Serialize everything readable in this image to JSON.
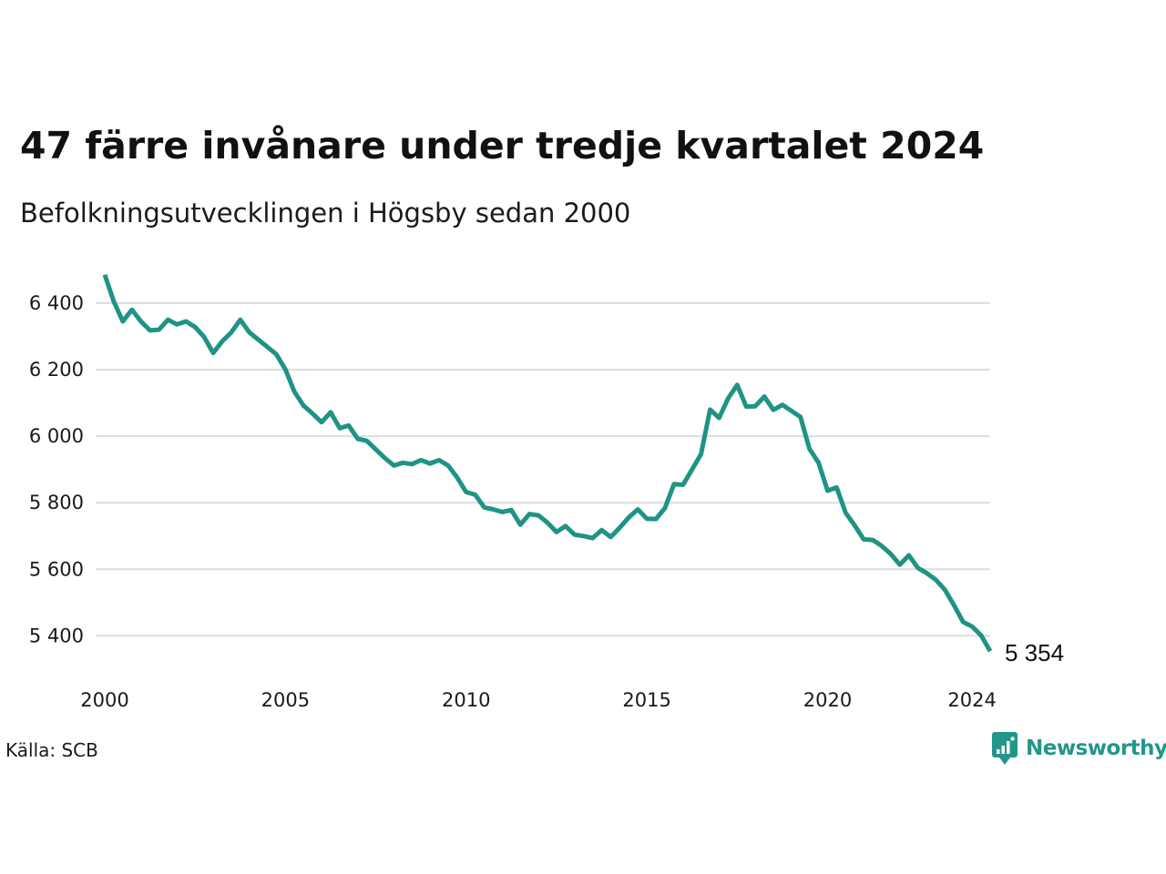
{
  "chart_data": {
    "type": "line",
    "title": "47 färre invånare under tredje kvartalet 2024",
    "subtitle": "Befolkningsutvecklingen i Högsby sedan 2000",
    "source": "Källa: SCB",
    "brand": "Newsworthy",
    "line_color": "#1f9384",
    "grid": true,
    "xlim": [
      2000,
      2024.5
    ],
    "ylim": [
      5330,
      6490
    ],
    "x_ticks": [
      {
        "value": 2000,
        "label": "2000"
      },
      {
        "value": 2005,
        "label": "2005"
      },
      {
        "value": 2010,
        "label": "2010"
      },
      {
        "value": 2015,
        "label": "2015"
      },
      {
        "value": 2020,
        "label": "2020"
      },
      {
        "value": 2024,
        "label": "2024"
      }
    ],
    "y_ticks": [
      {
        "value": 5400,
        "label": "5 400"
      },
      {
        "value": 5600,
        "label": "5 600"
      },
      {
        "value": 5800,
        "label": "5 800"
      },
      {
        "value": 6000,
        "label": "6 000"
      },
      {
        "value": 6200,
        "label": "6 200"
      },
      {
        "value": 6400,
        "label": "6 400"
      }
    ],
    "end_label": "5 354",
    "series": [
      {
        "start_year": 2000,
        "period": "quarter",
        "values": [
          6485,
          6405,
          6345,
          6380,
          6345,
          6318,
          6320,
          6350,
          6336,
          6345,
          6328,
          6298,
          6250,
          6285,
          6312,
          6350,
          6312,
          6290,
          6268,
          6246,
          6200,
          6133,
          6092,
          6068,
          6042,
          6072,
          6024,
          6032,
          5992,
          5986,
          5960,
          5934,
          5912,
          5920,
          5916,
          5928,
          5918,
          5928,
          5912,
          5876,
          5832,
          5824,
          5786,
          5780,
          5772,
          5778,
          5734,
          5766,
          5762,
          5740,
          5712,
          5730,
          5704,
          5700,
          5694,
          5718,
          5697,
          5725,
          5756,
          5780,
          5752,
          5751,
          5784,
          5856,
          5854,
          5900,
          5946,
          6080,
          6055,
          6114,
          6154,
          6089,
          6090,
          6119,
          6079,
          6094,
          6076,
          6058,
          5962,
          5920,
          5836,
          5846,
          5770,
          5732,
          5690,
          5688,
          5670,
          5646,
          5614,
          5642,
          5604,
          5588,
          5568,
          5538,
          5492,
          5442,
          5428,
          5401,
          5354
        ]
      }
    ]
  }
}
